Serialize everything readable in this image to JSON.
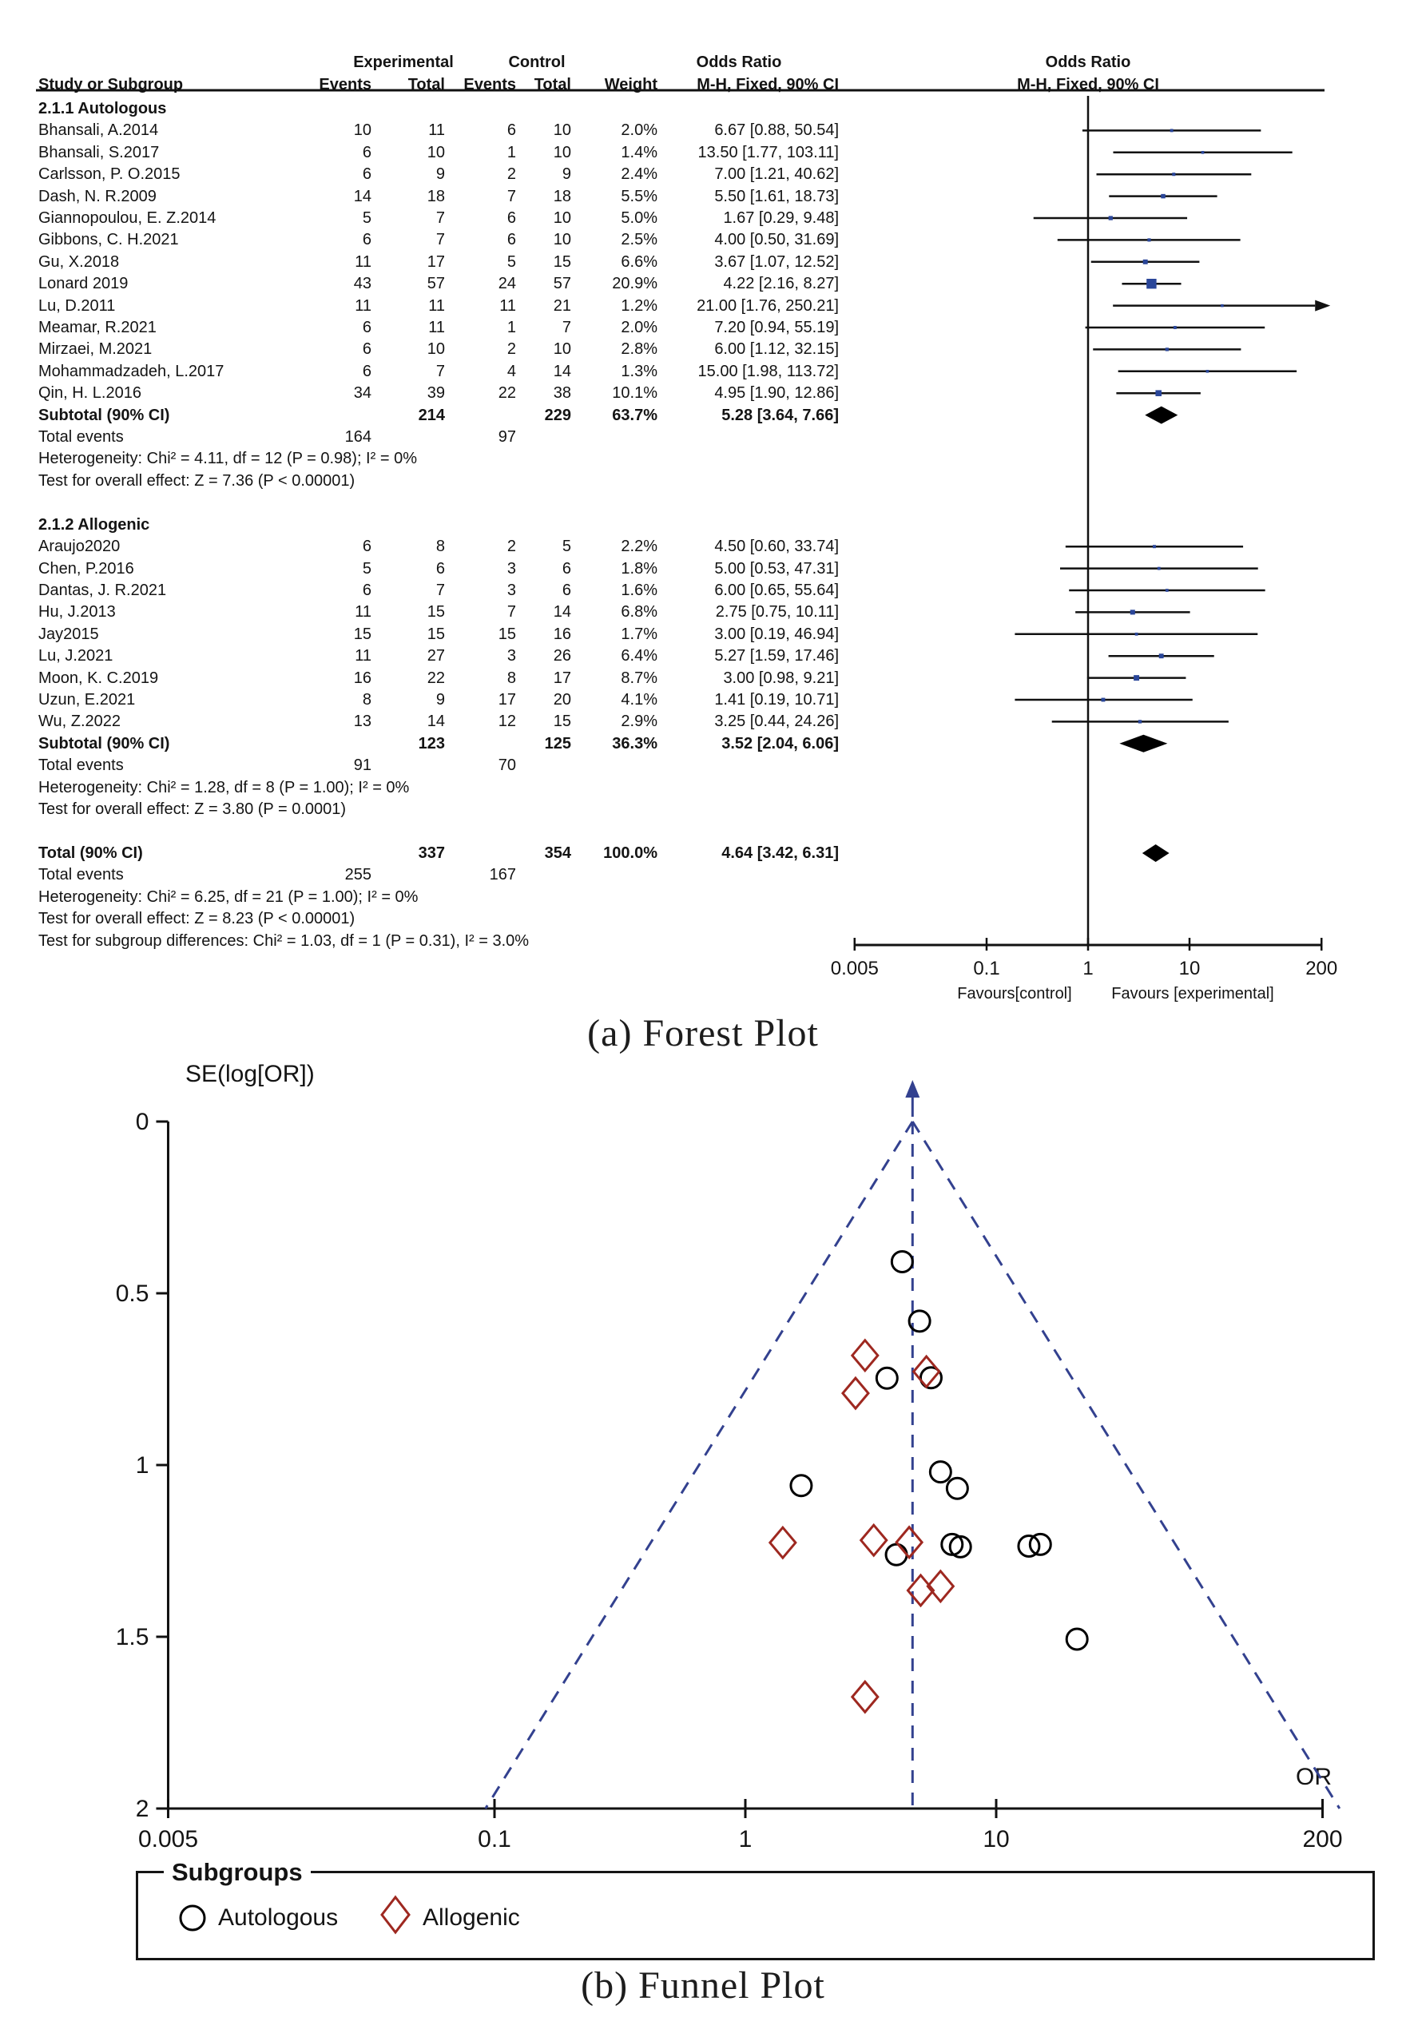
{
  "titles": {
    "forest": "(a)  Forest Plot",
    "funnel": "(b)  Funnel Plot"
  },
  "colors": {
    "text": "#141414",
    "line": "#111111",
    "study_square": "#2a4699",
    "pooled_diamond": "#000000",
    "funnel_dash": "#33418f",
    "autologous_marker": "#000000",
    "allogenic_marker": "#9e2820"
  },
  "chart_data": [
    {
      "id": "forest-plot",
      "type": "table",
      "title": "(a)  Forest Plot",
      "effect_measure": "Odds Ratio",
      "headers": {
        "group_experimental": "Experimental",
        "group_control": "Control",
        "group_or_left": "Odds Ratio",
        "group_or_right": "Odds Ratio",
        "study": "Study or Subgroup",
        "events_exp": "Events",
        "total_exp": "Total",
        "events_ctl": "Events",
        "total_ctl": "Total",
        "weight": "Weight",
        "ci_left": "M-H, Fixed, 90% CI",
        "ci_right": "M-H, Fixed, 90% CI"
      },
      "axis": {
        "scale": "log",
        "ticks": [
          0.005,
          0.1,
          1,
          10,
          200
        ],
        "tick_labels": [
          "0.005",
          "0.1",
          "1",
          "10",
          "200"
        ],
        "favours_left": "Favours[control]",
        "favours_right": "Favours [experimental]"
      },
      "subgroups": [
        {
          "name": "2.1.1 Autologous",
          "studies": [
            {
              "study": "Bhansali, A.2014",
              "e_events": 10,
              "e_total": 11,
              "c_events": 6,
              "c_total": 10,
              "weight": "2.0%",
              "weight_value": 2.0,
              "or": 6.67,
              "ci_low": 0.88,
              "ci_high": 50.54,
              "ci_text": "6.67 [0.88, 50.54]"
            },
            {
              "study": "Bhansali, S.2017",
              "e_events": 6,
              "e_total": 10,
              "c_events": 1,
              "c_total": 10,
              "weight": "1.4%",
              "weight_value": 1.4,
              "or": 13.5,
              "ci_low": 1.77,
              "ci_high": 103.11,
              "ci_text": "13.50 [1.77, 103.11]"
            },
            {
              "study": "Carlsson, P. O.2015",
              "e_events": 6,
              "e_total": 9,
              "c_events": 2,
              "c_total": 9,
              "weight": "2.4%",
              "weight_value": 2.4,
              "or": 7.0,
              "ci_low": 1.21,
              "ci_high": 40.62,
              "ci_text": "7.00 [1.21, 40.62]"
            },
            {
              "study": "Dash, N. R.2009",
              "e_events": 14,
              "e_total": 18,
              "c_events": 7,
              "c_total": 18,
              "weight": "5.5%",
              "weight_value": 5.5,
              "or": 5.5,
              "ci_low": 1.61,
              "ci_high": 18.73,
              "ci_text": "5.50 [1.61, 18.73]"
            },
            {
              "study": "Giannopoulou, E. Z.2014",
              "e_events": 5,
              "e_total": 7,
              "c_events": 6,
              "c_total": 10,
              "weight": "5.0%",
              "weight_value": 5.0,
              "or": 1.67,
              "ci_low": 0.29,
              "ci_high": 9.48,
              "ci_text": "1.67 [0.29, 9.48]"
            },
            {
              "study": "Gibbons, C. H.2021",
              "e_events": 6,
              "e_total": 7,
              "c_events": 6,
              "c_total": 10,
              "weight": "2.5%",
              "weight_value": 2.5,
              "or": 4.0,
              "ci_low": 0.5,
              "ci_high": 31.69,
              "ci_text": "4.00 [0.50, 31.69]"
            },
            {
              "study": "Gu, X.2018",
              "e_events": 11,
              "e_total": 17,
              "c_events": 5,
              "c_total": 15,
              "weight": "6.6%",
              "weight_value": 6.6,
              "or": 3.67,
              "ci_low": 1.07,
              "ci_high": 12.52,
              "ci_text": "3.67 [1.07, 12.52]"
            },
            {
              "study": "Lonard 2019",
              "e_events": 43,
              "e_total": 57,
              "c_events": 24,
              "c_total": 57,
              "weight": "20.9%",
              "weight_value": 20.9,
              "or": 4.22,
              "ci_low": 2.16,
              "ci_high": 8.27,
              "ci_text": "4.22 [2.16, 8.27]"
            },
            {
              "study": "Lu, D.2011",
              "e_events": 11,
              "e_total": 11,
              "c_events": 11,
              "c_total": 21,
              "weight": "1.2%",
              "weight_value": 1.2,
              "or": 21.0,
              "ci_low": 1.76,
              "ci_high": 250.21,
              "ci_text": "21.00 [1.76, 250.21]"
            },
            {
              "study": "Meamar, R.2021",
              "e_events": 6,
              "e_total": 11,
              "c_events": 1,
              "c_total": 7,
              "weight": "2.0%",
              "weight_value": 2.0,
              "or": 7.2,
              "ci_low": 0.94,
              "ci_high": 55.19,
              "ci_text": "7.20 [0.94, 55.19]"
            },
            {
              "study": "Mirzaei, M.2021",
              "e_events": 6,
              "e_total": 10,
              "c_events": 2,
              "c_total": 10,
              "weight": "2.8%",
              "weight_value": 2.8,
              "or": 6.0,
              "ci_low": 1.12,
              "ci_high": 32.15,
              "ci_text": "6.00 [1.12, 32.15]"
            },
            {
              "study": "Mohammadzadeh, L.2017",
              "e_events": 6,
              "e_total": 7,
              "c_events": 4,
              "c_total": 14,
              "weight": "1.3%",
              "weight_value": 1.3,
              "or": 15.0,
              "ci_low": 1.98,
              "ci_high": 113.72,
              "ci_text": "15.00 [1.98, 113.72]"
            },
            {
              "study": "Qin, H. L.2016",
              "e_events": 34,
              "e_total": 39,
              "c_events": 22,
              "c_total": 38,
              "weight": "10.1%",
              "weight_value": 10.1,
              "or": 4.95,
              "ci_low": 1.9,
              "ci_high": 12.86,
              "ci_text": "4.95 [1.90, 12.86]"
            }
          ],
          "subtotal": {
            "label": "Subtotal (90% CI)",
            "e_total": 214,
            "c_total": 229,
            "weight": "63.7%",
            "or": 5.28,
            "ci_low": 3.64,
            "ci_high": 7.66,
            "ci_text": "5.28 [3.64, 7.66]"
          },
          "total_events": {
            "label": "Total events",
            "e": 164,
            "c": 97
          },
          "heterogeneity": "Heterogeneity: Chi² = 4.11, df = 12 (P = 0.98); I² = 0%",
          "overall_test": "Test for overall effect: Z = 7.36 (P < 0.00001)"
        },
        {
          "name": "2.1.2 Allogenic",
          "studies": [
            {
              "study": "Araujo2020",
              "e_events": 6,
              "e_total": 8,
              "c_events": 2,
              "c_total": 5,
              "weight": "2.2%",
              "weight_value": 2.2,
              "or": 4.5,
              "ci_low": 0.6,
              "ci_high": 33.74,
              "ci_text": "4.50 [0.60, 33.74]"
            },
            {
              "study": "Chen, P.2016",
              "e_events": 5,
              "e_total": 6,
              "c_events": 3,
              "c_total": 6,
              "weight": "1.8%",
              "weight_value": 1.8,
              "or": 5.0,
              "ci_low": 0.53,
              "ci_high": 47.31,
              "ci_text": "5.00 [0.53, 47.31]"
            },
            {
              "study": "Dantas, J. R.2021",
              "e_events": 6,
              "e_total": 7,
              "c_events": 3,
              "c_total": 6,
              "weight": "1.6%",
              "weight_value": 1.6,
              "or": 6.0,
              "ci_low": 0.65,
              "ci_high": 55.64,
              "ci_text": "6.00 [0.65, 55.64]"
            },
            {
              "study": "Hu, J.2013",
              "e_events": 11,
              "e_total": 15,
              "c_events": 7,
              "c_total": 14,
              "weight": "6.8%",
              "weight_value": 6.8,
              "or": 2.75,
              "ci_low": 0.75,
              "ci_high": 10.11,
              "ci_text": "2.75 [0.75, 10.11]"
            },
            {
              "study": "Jay2015",
              "e_events": 15,
              "e_total": 15,
              "c_events": 15,
              "c_total": 16,
              "weight": "1.7%",
              "weight_value": 1.7,
              "or": 3.0,
              "ci_low": 0.19,
              "ci_high": 46.94,
              "ci_text": "3.00 [0.19, 46.94]"
            },
            {
              "study": "Lu, J.2021",
              "e_events": 11,
              "e_total": 27,
              "c_events": 3,
              "c_total": 26,
              "weight": "6.4%",
              "weight_value": 6.4,
              "or": 5.27,
              "ci_low": 1.59,
              "ci_high": 17.46,
              "ci_text": "5.27 [1.59, 17.46]"
            },
            {
              "study": "Moon, K. C.2019",
              "e_events": 16,
              "e_total": 22,
              "c_events": 8,
              "c_total": 17,
              "weight": "8.7%",
              "weight_value": 8.7,
              "or": 3.0,
              "ci_low": 0.98,
              "ci_high": 9.21,
              "ci_text": "3.00 [0.98, 9.21]"
            },
            {
              "study": "Uzun, E.2021",
              "e_events": 8,
              "e_total": 9,
              "c_events": 17,
              "c_total": 20,
              "weight": "4.1%",
              "weight_value": 4.1,
              "or": 1.41,
              "ci_low": 0.19,
              "ci_high": 10.71,
              "ci_text": "1.41 [0.19, 10.71]"
            },
            {
              "study": "Wu, Z.2022",
              "e_events": 13,
              "e_total": 14,
              "c_events": 12,
              "c_total": 15,
              "weight": "2.9%",
              "weight_value": 2.9,
              "or": 3.25,
              "ci_low": 0.44,
              "ci_high": 24.26,
              "ci_text": "3.25 [0.44, 24.26]"
            }
          ],
          "subtotal": {
            "label": "Subtotal (90% CI)",
            "e_total": 123,
            "c_total": 125,
            "weight": "36.3%",
            "or": 3.52,
            "ci_low": 2.04,
            "ci_high": 6.06,
            "ci_text": "3.52 [2.04, 6.06]"
          },
          "total_events": {
            "label": "Total events",
            "e": 91,
            "c": 70
          },
          "heterogeneity": "Heterogeneity: Chi² = 1.28, df = 8 (P = 1.00); I² = 0%",
          "overall_test": "Test for overall effect: Z = 3.80 (P = 0.0001)"
        }
      ],
      "total": {
        "label": "Total (90% CI)",
        "e_total": 337,
        "c_total": 354,
        "weight": "100.0%",
        "or": 4.64,
        "ci_low": 3.42,
        "ci_high": 6.31,
        "ci_text": "4.64 [3.42, 6.31]",
        "total_events": {
          "label": "Total events",
          "e": 255,
          "c": 167
        },
        "heterogeneity": "Heterogeneity: Chi² = 6.25, df = 21 (P = 1.00); I² = 0%",
        "overall_test": "Test for overall effect: Z = 8.23 (P < 0.00001)",
        "subgroup_diff": "Test for subgroup differences: Chi² = 1.03, df = 1 (P = 0.31), I² = 3.0%"
      }
    },
    {
      "id": "funnel-plot",
      "type": "scatter",
      "title": "(b)  Funnel Plot",
      "xlabel": "OR",
      "ylabel": "SE(log[OR])",
      "x_scale": "log",
      "xlim": [
        0.005,
        200
      ],
      "ylim": [
        0,
        2
      ],
      "y_inverted": true,
      "xticks": [
        0.005,
        0.1,
        1,
        10,
        200
      ],
      "xtick_labels": [
        "0.005",
        "0.1",
        "1",
        "10",
        "200"
      ],
      "yticks": [
        0,
        0.5,
        1,
        1.5,
        2
      ],
      "ytick_labels": [
        "0",
        "0.5",
        "1",
        "1.5",
        "2"
      ],
      "apex_or": 4.64,
      "pseudo_ci_z": 1.96,
      "legend": {
        "title": "Subgroups",
        "items": [
          {
            "label": "Autologous",
            "marker": "circle"
          },
          {
            "label": "Allogenic",
            "marker": "diamond"
          }
        ]
      },
      "series": [
        {
          "name": "Autologous",
          "marker": "circle",
          "points": [
            [
              6.67,
              1.231
            ],
            [
              13.5,
              1.236
            ],
            [
              7.0,
              1.068
            ],
            [
              5.5,
              0.746
            ],
            [
              1.67,
              1.06
            ],
            [
              4.0,
              1.261
            ],
            [
              3.67,
              0.747
            ],
            [
              4.22,
              0.408
            ],
            [
              21.0,
              1.507
            ],
            [
              7.2,
              1.238
            ],
            [
              6.0,
              1.02
            ],
            [
              15.0,
              1.231
            ],
            [
              4.95,
              0.581
            ]
          ]
        },
        {
          "name": "Allogenic",
          "marker": "diamond",
          "points": [
            [
              4.5,
              1.225
            ],
            [
              5.0,
              1.365
            ],
            [
              6.0,
              1.353
            ],
            [
              2.75,
              0.791
            ],
            [
              3.0,
              1.675
            ],
            [
              5.27,
              0.728
            ],
            [
              3.0,
              0.681
            ],
            [
              1.41,
              1.226
            ],
            [
              3.25,
              1.219
            ]
          ]
        }
      ]
    }
  ]
}
